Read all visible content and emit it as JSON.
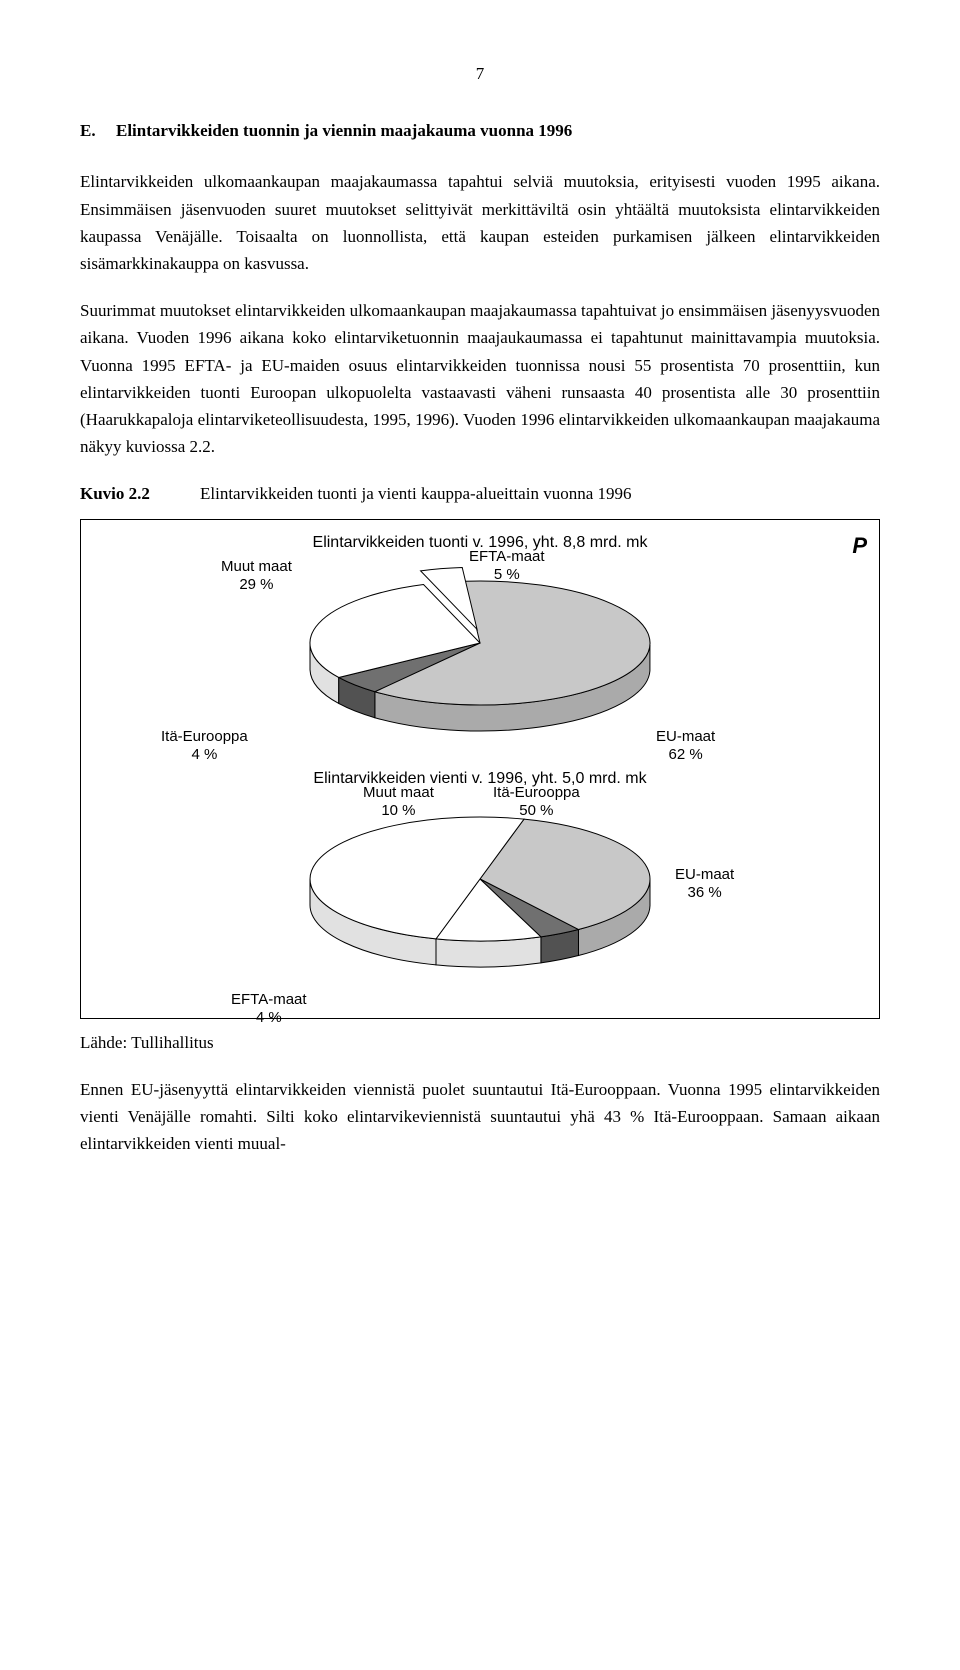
{
  "page_number": "7",
  "section": {
    "letter": "E.",
    "title": "Elintarvikkeiden tuonnin ja viennin maajakauma vuonna 1996"
  },
  "paragraphs": {
    "p1": "Elintarvikkeiden ulkomaankaupan maajakaumassa tapahtui selviä muutoksia, erityisesti vuoden 1995 aikana. Ensimmäisen jäsenvuoden suuret muutokset selittyivät merkittäviltä osin yhtäältä muutoksista elintarvikkeiden kaupassa Venäjälle. Toisaalta on luonnollista, että kaupan esteiden purkamisen jälkeen elintarvikkeiden sisämarkkinakauppa on kasvussa.",
    "p2": "Suurimmat muutokset elintarvikkeiden ulkomaankaupan maajakaumassa tapahtuivat jo ensimmäisen jäsenyysvuoden aikana. Vuoden 1996 aikana koko elintarviketuonnin maajaukaumassa ei tapahtunut mainittavampia muutoksia. Vuonna 1995 EFTA- ja EU-maiden osuus elintarvikkeiden tuonnissa nousi 55 prosentista 70 prosenttiin, kun elintarvikkeiden tuonti Euroopan ulkopuolelta vastaavasti väheni runsaasta 40 prosentista alle 30 prosenttiin (Haarukkapaloja elintarviketeollisuudesta, 1995, 1996). Vuoden 1996 elintarvikkeiden ulkomaankaupan maajakauma näkyy kuviossa 2.2."
  },
  "kuvio": {
    "label": "Kuvio 2.2",
    "title": "Elintarvikkeiden tuonti ja vienti kauppa-alueittain vuonna 1996"
  },
  "chart1": {
    "type": "pie",
    "title": "Elintarvikkeiden tuonti v. 1996, yht. 8,8 mrd. mk",
    "slices": [
      {
        "label": "EU-maat",
        "value": 62,
        "pct": "62 %",
        "color": "#c8c8c8"
      },
      {
        "label": "EFTA-maat",
        "value": 5,
        "pct": "5 %",
        "color": "#707070"
      },
      {
        "label": "Muut maat",
        "value": 29,
        "pct": "29 %",
        "color": "#ffffff"
      },
      {
        "label": "Itä-Eurooppa",
        "value": 4,
        "pct": "4 %",
        "color": "#ffffff"
      }
    ],
    "outline_color": "#000000",
    "label_fontsize": 15
  },
  "chart2": {
    "type": "pie",
    "title": "Elintarvikkeiden vienti v. 1996, yht. 5,0 mrd. mk",
    "slices": [
      {
        "label": "EU-maat",
        "value": 36,
        "pct": "36 %",
        "color": "#c8c8c8"
      },
      {
        "label": "EFTA-maat",
        "value": 4,
        "pct": "4 %",
        "color": "#707070"
      },
      {
        "label": "Muut maat",
        "value": 10,
        "pct": "10 %",
        "color": "#ffffff"
      },
      {
        "label": "Itä-Eurooppa",
        "value": 50,
        "pct": "50 %",
        "color": "#ffffff"
      }
    ],
    "outline_color": "#000000",
    "label_fontsize": 15
  },
  "logo_text": "P",
  "source": "Lähde: Tullihallitus",
  "final_paragraph": "Ennen EU-jäsenyyttä elintarvikkeiden viennistä puolet suuntautui Itä-Eurooppaan. Vuonna 1995 elintarvikkeiden vienti Venäjälle romahti. Silti koko elintarvikeviennistä suuntautui yhä 43 % Itä-Eurooppaan. Samaan aikaan elintarvikkeiden vienti muual-"
}
